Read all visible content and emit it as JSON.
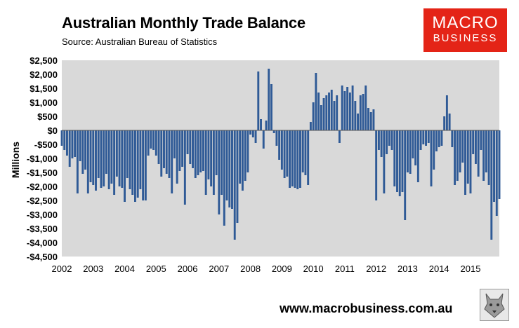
{
  "header": {
    "title": "Australian Monthly Trade Balance",
    "subtitle": "Source: Australian Bureau of Statistics"
  },
  "logo": {
    "line1": "MACRO",
    "line2": "BUSINESS"
  },
  "footer": {
    "website": "www.macrobusiness.com.au"
  },
  "wolf_icon": "wolf-logo-icon",
  "colors": {
    "bar": "#2f5a96",
    "plot_bg": "#d9d9d9",
    "logo_bg": "#e42417"
  },
  "chart_data": {
    "type": "bar",
    "title": "Australian Monthly Trade Balance",
    "subtitle": "Source: Australian Bureau of Statistics",
    "xlabel": "",
    "ylabel": "Millions",
    "ylim": [
      -4500,
      2500
    ],
    "yticks": [
      2500,
      2000,
      1500,
      1000,
      500,
      0,
      -500,
      -1000,
      -1500,
      -2000,
      -2500,
      -3000,
      -3500,
      -4000,
      -4500
    ],
    "ytick_labels": [
      "$2,500",
      "$2,000",
      "$1,500",
      "$1,000",
      "$500",
      "$0",
      "-$500",
      "-$1,000",
      "-$1,500",
      "-$2,000",
      "-$2,500",
      "-$3,000",
      "-$3,500",
      "-$4,000",
      "-$4,500"
    ],
    "xtick_labels": [
      "2002",
      "2003",
      "2004",
      "2005",
      "2006",
      "2007",
      "2008",
      "2009",
      "2010",
      "2011",
      "2012",
      "2013",
      "2014",
      "2015"
    ],
    "start_label": "Jan 2002",
    "frequency": "monthly",
    "grid": false,
    "values": [
      -550,
      -700,
      -900,
      -1300,
      -1000,
      -950,
      -2250,
      -1100,
      -1550,
      -1400,
      -2250,
      -1850,
      -1950,
      -2150,
      -1700,
      -2050,
      -2000,
      -1550,
      -2100,
      -1900,
      -2300,
      -1650,
      -2000,
      -2050,
      -2550,
      -1700,
      -2100,
      -2300,
      -2550,
      -2400,
      -2100,
      -2500,
      -2500,
      -900,
      -650,
      -700,
      -900,
      -1200,
      -1650,
      -1350,
      -1550,
      -1700,
      -2250,
      -1000,
      -1900,
      -1450,
      -1300,
      -2650,
      -850,
      -1200,
      -1350,
      -1700,
      -1600,
      -1500,
      -1450,
      -2300,
      -1750,
      -2000,
      -2300,
      -1600,
      -3000,
      -2300,
      -3400,
      -2500,
      -2750,
      -2800,
      -3900,
      -3300,
      -1900,
      -2150,
      -1800,
      -1500,
      -150,
      -250,
      -450,
      2100,
      400,
      -650,
      350,
      2200,
      1650,
      -100,
      -550,
      -1050,
      -1400,
      -1700,
      -1650,
      -2050,
      -2000,
      -2050,
      -2100,
      -2050,
      -1500,
      -1600,
      -1950,
      300,
      1000,
      2050,
      1350,
      900,
      1150,
      1250,
      1350,
      1450,
      1050,
      1250,
      -450,
      1600,
      1400,
      1550,
      1350,
      1600,
      1050,
      600,
      1250,
      1300,
      1600,
      800,
      650,
      750,
      -2500,
      -700,
      -950,
      -2250,
      -850,
      -550,
      -700,
      -2000,
      -2200,
      -2350,
      -2200,
      -3200,
      -1500,
      -1550,
      -1000,
      -1250,
      -1850,
      -700,
      -500,
      -550,
      -450,
      -2000,
      -1400,
      -750,
      -600,
      -550,
      500,
      1250,
      600,
      -600,
      -1950,
      -1800,
      -1500,
      -1150,
      -2300,
      -1900,
      -2250,
      -850,
      -1200,
      -1650,
      -700,
      -1800,
      -1500,
      -1950,
      -3900,
      -2550,
      -3050,
      -2450
    ]
  }
}
